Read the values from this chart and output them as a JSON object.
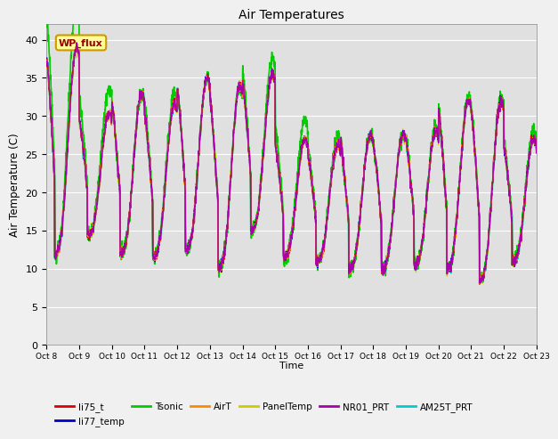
{
  "title": "Air Temperatures",
  "xlabel": "Time",
  "ylabel": "Air Temperature (C)",
  "ylim": [
    0,
    42
  ],
  "yticks": [
    0,
    5,
    10,
    15,
    20,
    25,
    30,
    35,
    40
  ],
  "background_color": "#e0e0e0",
  "fig_facecolor": "#f0f0f0",
  "series": {
    "li75_t": {
      "color": "#dd0000",
      "lw": 1.0,
      "zorder": 5
    },
    "li77_temp": {
      "color": "#0000cc",
      "lw": 1.0,
      "zorder": 4
    },
    "Tsonic": {
      "color": "#00cc00",
      "lw": 1.2,
      "zorder": 3
    },
    "AirT": {
      "color": "#ff8800",
      "lw": 1.0,
      "zorder": 6
    },
    "PanelTemp": {
      "color": "#cccc00",
      "lw": 1.0,
      "zorder": 2
    },
    "NR01_PRT": {
      "color": "#aa00aa",
      "lw": 1.0,
      "zorder": 7
    },
    "AM25T_PRT": {
      "color": "#00cccc",
      "lw": 1.4,
      "zorder": 1
    }
  },
  "annotation": {
    "text": "WP_flux",
    "fontsize": 8,
    "color": "#990000",
    "bgcolor": "#ffff99",
    "edgecolor": "#cc9900"
  },
  "legend_order_row1": [
    "li75_t",
    "li77_temp",
    "Tsonic",
    "AirT",
    "PanelTemp",
    "NR01_PRT"
  ],
  "legend_order_row2": [
    "AM25T_PRT"
  ],
  "xtick_labels": [
    "Oct 8",
    "Oct 9",
    "Oct 10",
    "Oct 11",
    "Oct 12",
    "Oct 13",
    "Oct 14",
    "Oct 15",
    "Oct 16",
    "Oct 17",
    "Oct 18",
    "Oct 19",
    "Oct 20",
    "Oct 21",
    "Oct 22",
    "Oct 23"
  ],
  "day_peaks": [
    39.0,
    30.5,
    33.0,
    31.5,
    35.0,
    34.0,
    35.5,
    27.0,
    26.0,
    27.5,
    27.5,
    28.0,
    32.0,
    32.0,
    27.0,
    26.5
  ],
  "day_mins": [
    12.0,
    14.5,
    12.0,
    11.5,
    12.5,
    10.0,
    15.0,
    11.5,
    11.0,
    10.0,
    10.0,
    10.5,
    10.0,
    8.5,
    11.0,
    11.0
  ],
  "tsonic_extra": [
    6.0,
    3.0,
    0.0,
    1.5,
    0.0,
    0.0,
    2.0,
    2.5,
    1.0,
    0.0,
    0.0,
    0.5,
    0.5,
    0.5,
    1.0,
    0.5
  ],
  "n_days": 15,
  "pts_per_day": 144
}
